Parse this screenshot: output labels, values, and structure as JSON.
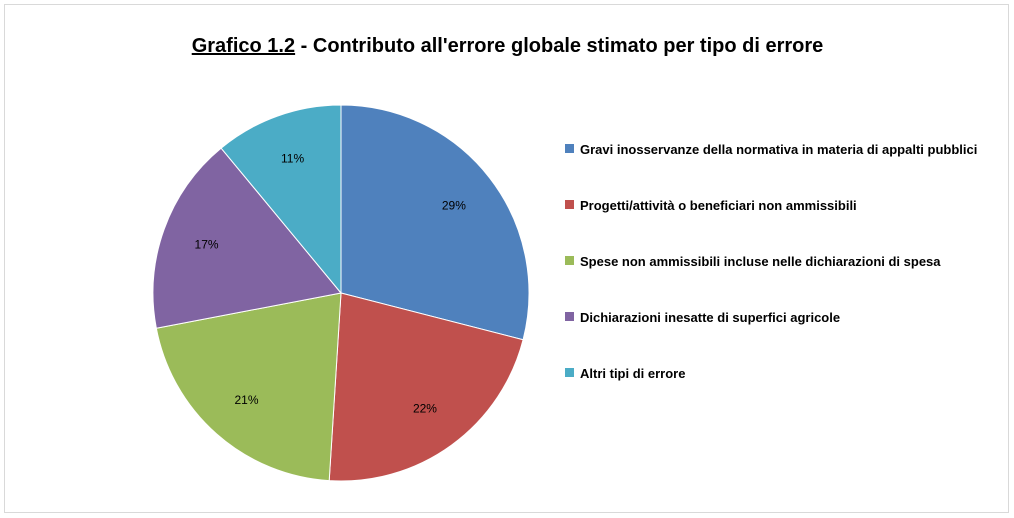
{
  "chart_data": {
    "type": "pie",
    "title_prefix": "Grafico 1.2",
    "title_rest": " - Contributo all'errore globale stimato per tipo di errore",
    "labels": [
      "Gravi inosservanze della normativa in materia di appalti pubblici",
      "Progetti/attività o beneficiari non ammissibili",
      "Spese non ammissibili incluse nelle dichiarazioni di spesa",
      "Dichiarazioni inesatte di superfici agricole",
      "Altri tipi di errore"
    ],
    "values": [
      29,
      22,
      21,
      17,
      11
    ],
    "data_labels": [
      "29%",
      "22%",
      "21%",
      "17%",
      "11%"
    ],
    "colors": [
      "#4f81bd",
      "#c0504d",
      "#9bbb59",
      "#8064a2",
      "#4bacc6"
    ],
    "legend_position": "right"
  }
}
